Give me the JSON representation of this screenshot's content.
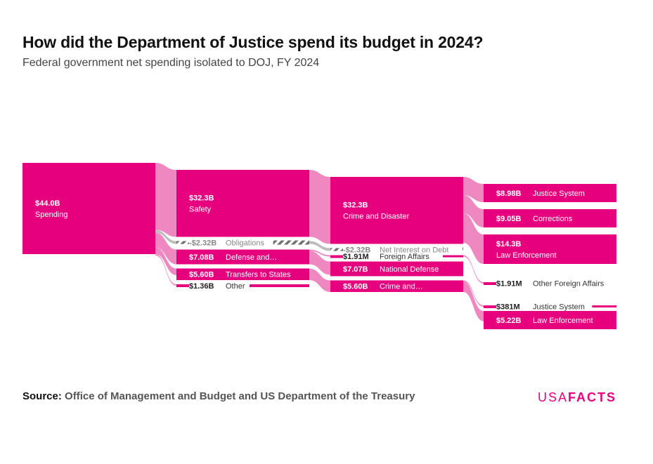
{
  "header": {
    "title": "How did the Department of Justice spend its budget in 2024?",
    "subtitle": "Federal government net spending isolated to DOJ, FY 2024"
  },
  "footer": {
    "source_label": "Source:",
    "source_text": "Office of Management and Budget and US Department of the Treasury",
    "logo_a": "USA",
    "logo_b": "FACTS"
  },
  "colors": {
    "primary": "#e6007e",
    "link": "#ef88c0",
    "negative": "#bdbdbd",
    "negative_stripe": "#777777"
  },
  "chart_data": {
    "type": "sankey",
    "unit": "USD",
    "levels": [
      [
        {
          "id": "spending",
          "label": "Spending",
          "value_label": "$44.0B",
          "value": 44.0,
          "big": true
        }
      ],
      [
        {
          "id": "safety",
          "label": "Safety",
          "value_label": "$32.3B",
          "value": 32.3,
          "big": true
        },
        {
          "id": "obligations",
          "label": "Obligations",
          "value_label": "-$2.32B",
          "value": -2.32,
          "negative": true
        },
        {
          "id": "defense_and",
          "label": "Defense and…",
          "value_label": "$7.08B",
          "value": 7.08
        },
        {
          "id": "transfers",
          "label": "Transfers to States",
          "value_label": "$5.60B",
          "value": 5.6
        },
        {
          "id": "other",
          "label": "Other",
          "value_label": "$1.36B",
          "value": 1.36
        }
      ],
      [
        {
          "id": "crime_disaster",
          "label": "Crime and Disaster",
          "value_label": "$32.3B",
          "value": 32.3,
          "big": true
        },
        {
          "id": "net_interest",
          "label": "Net Interest on Debt",
          "value_label": "-$2.32B",
          "value": -2.32,
          "negative": true
        },
        {
          "id": "foreign_affairs",
          "label": "Foreign Affairs",
          "value_label": "$1.91M",
          "value": 0.00191
        },
        {
          "id": "national_defense",
          "label": "National Defense",
          "value_label": "$7.07B",
          "value": 7.07
        },
        {
          "id": "crime_and",
          "label": "Crime and…",
          "value_label": "$5.60B",
          "value": 5.6
        }
      ],
      [
        {
          "id": "justice_system",
          "label": "Justice System",
          "value_label": "$8.98B",
          "value": 8.98
        },
        {
          "id": "corrections",
          "label": "Corrections",
          "value_label": "$9.05B",
          "value": 9.05
        },
        {
          "id": "law_enforcement",
          "label": "Law Enforcement",
          "value_label": "$14.3B",
          "value": 14.3,
          "big": true
        },
        {
          "id": "other_foreign",
          "label": "Other Foreign Affairs",
          "value_label": "$1.91M",
          "value": 0.00191
        },
        {
          "id": "justice_system_2",
          "label": "Justice System",
          "value_label": "$381M",
          "value": 0.381
        },
        {
          "id": "law_enforcement_2",
          "label": "Law Enforcement",
          "value_label": "$5.22B",
          "value": 5.22
        }
      ]
    ],
    "links": [
      {
        "source": "spending",
        "target": "safety",
        "value": 32.3
      },
      {
        "source": "spending",
        "target": "obligations",
        "value": -2.32
      },
      {
        "source": "spending",
        "target": "defense_and",
        "value": 7.08
      },
      {
        "source": "spending",
        "target": "transfers",
        "value": 5.6
      },
      {
        "source": "spending",
        "target": "other",
        "value": 1.36
      },
      {
        "source": "safety",
        "target": "crime_disaster",
        "value": 32.3
      },
      {
        "source": "obligations",
        "target": "net_interest",
        "value": -2.32
      },
      {
        "source": "defense_and",
        "target": "foreign_affairs",
        "value": 0.00191
      },
      {
        "source": "defense_and",
        "target": "national_defense",
        "value": 7.07
      },
      {
        "source": "transfers",
        "target": "crime_and",
        "value": 5.6
      },
      {
        "source": "crime_disaster",
        "target": "justice_system",
        "value": 8.98
      },
      {
        "source": "crime_disaster",
        "target": "corrections",
        "value": 9.05
      },
      {
        "source": "crime_disaster",
        "target": "law_enforcement",
        "value": 14.3
      },
      {
        "source": "foreign_affairs",
        "target": "other_foreign",
        "value": 0.00191
      },
      {
        "source": "crime_and",
        "target": "justice_system_2",
        "value": 0.381
      },
      {
        "source": "crime_and",
        "target": "law_enforcement_2",
        "value": 5.22
      }
    ]
  }
}
